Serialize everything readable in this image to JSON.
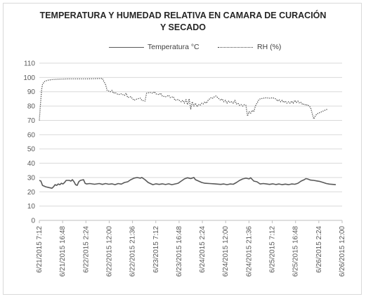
{
  "chart_data": {
    "type": "line",
    "title_lines": [
      "TEMPERATURA Y HUMEDAD RELATIVA EN CAMARA DE CURACIÓN",
      "Y SECADO"
    ],
    "xlabel": "",
    "ylabel": "",
    "ylim": [
      0,
      110
    ],
    "yticks": [
      0,
      10,
      20,
      30,
      40,
      50,
      60,
      70,
      80,
      90,
      100,
      110
    ],
    "grid": true,
    "legend_position": "top",
    "x_unit": "hours after 6/21/2015 7:12",
    "categories": [
      "6/21/2015 7:12",
      "6/21/2015 16:48",
      "6/22/2015 2:24",
      "6/22/2015 12:00",
      "6/22/2015 21:36",
      "6/23/2015 7:12",
      "6/23/2015 16:48",
      "6/24/2015 2:24",
      "6/24/2015 12:00",
      "6/24/2015 21:36",
      "6/25/2015 7:12",
      "6/25/2015 16:48",
      "6/26/2015 2:24",
      "6/26/2015 12:00"
    ],
    "series": [
      {
        "name": "Temperatura °C",
        "color": "#595959",
        "style": "solid",
        "points": [
          [
            0,
            28
          ],
          [
            1,
            27.5
          ],
          [
            2,
            24.5
          ],
          [
            4,
            23.5
          ],
          [
            6,
            23
          ],
          [
            8,
            22.5
          ],
          [
            9,
            23.5
          ],
          [
            10,
            25
          ],
          [
            11,
            24.5
          ],
          [
            12,
            25.5
          ],
          [
            13,
            25
          ],
          [
            14,
            26
          ],
          [
            15,
            25.5
          ],
          [
            16,
            26.5
          ],
          [
            17,
            28
          ],
          [
            19,
            28
          ],
          [
            20,
            27.5
          ],
          [
            21,
            28.5
          ],
          [
            22,
            27
          ],
          [
            23,
            25
          ],
          [
            24,
            24.5
          ],
          [
            25,
            27
          ],
          [
            26,
            28
          ],
          [
            28,
            28.5
          ],
          [
            29,
            26
          ],
          [
            30,
            25.5
          ],
          [
            32,
            25.8
          ],
          [
            35,
            25.3
          ],
          [
            38,
            25.8
          ],
          [
            40,
            25.2
          ],
          [
            42,
            25.8
          ],
          [
            44,
            25.3
          ],
          [
            46,
            25.6
          ],
          [
            48,
            25
          ],
          [
            50,
            25.8
          ],
          [
            52,
            25.4
          ],
          [
            54,
            26.5
          ],
          [
            56,
            27
          ],
          [
            58,
            28.5
          ],
          [
            60,
            29.5
          ],
          [
            62,
            30
          ],
          [
            64,
            29.5
          ],
          [
            65,
            30
          ],
          [
            67,
            28.5
          ],
          [
            69,
            26.5
          ],
          [
            71,
            25.5
          ],
          [
            72,
            25
          ],
          [
            74,
            25.6
          ],
          [
            76,
            25.2
          ],
          [
            78,
            25.6
          ],
          [
            80,
            25.1
          ],
          [
            82,
            25.6
          ],
          [
            84,
            25
          ],
          [
            86,
            25.5
          ],
          [
            88,
            26
          ],
          [
            90,
            27.5
          ],
          [
            92,
            29
          ],
          [
            94,
            29.8
          ],
          [
            96,
            29.2
          ],
          [
            98,
            30
          ],
          [
            99,
            28.5
          ],
          [
            101,
            27.5
          ],
          [
            103,
            26.5
          ],
          [
            105,
            26
          ],
          [
            108,
            25.8
          ],
          [
            111,
            25.6
          ],
          [
            113,
            25.4
          ],
          [
            115,
            25.2
          ],
          [
            117,
            25.5
          ],
          [
            119,
            25
          ],
          [
            121,
            25.5
          ],
          [
            123,
            25.3
          ],
          [
            125,
            26.5
          ],
          [
            127,
            28
          ],
          [
            129,
            29
          ],
          [
            131,
            29.5
          ],
          [
            133,
            29
          ],
          [
            134,
            29.8
          ],
          [
            136,
            27.5
          ],
          [
            138,
            27
          ],
          [
            140,
            25.5
          ],
          [
            142,
            25.8
          ],
          [
            144,
            25.5
          ],
          [
            146,
            25.2
          ],
          [
            148,
            25.6
          ],
          [
            150,
            25.1
          ],
          [
            152,
            25.5
          ],
          [
            154,
            25
          ],
          [
            156,
            25.4
          ],
          [
            158,
            25
          ],
          [
            160,
            25.5
          ],
          [
            162,
            25.3
          ],
          [
            164,
            26
          ],
          [
            166,
            27.5
          ],
          [
            168,
            28.5
          ],
          [
            169,
            29.2
          ],
          [
            170,
            29
          ],
          [
            172,
            28.2
          ],
          [
            174,
            28
          ],
          [
            176,
            27.6
          ],
          [
            178,
            27.2
          ],
          [
            180,
            26.5
          ],
          [
            182,
            25.8
          ],
          [
            184,
            25.4
          ],
          [
            186,
            25.2
          ],
          [
            188,
            25
          ]
        ]
      },
      {
        "name": "RH (%)",
        "color": "#404040",
        "style": "dotted",
        "points": [
          [
            0,
            70
          ],
          [
            0.5,
            78
          ],
          [
            1,
            85
          ],
          [
            1.5,
            92
          ],
          [
            2,
            95
          ],
          [
            3,
            97
          ],
          [
            5,
            98
          ],
          [
            8,
            98.5
          ],
          [
            12,
            98.8
          ],
          [
            18,
            99
          ],
          [
            24,
            99
          ],
          [
            30,
            99
          ],
          [
            36,
            99.2
          ],
          [
            40,
            99.3
          ],
          [
            41,
            97
          ],
          [
            42,
            95
          ],
          [
            43,
            91
          ],
          [
            45,
            90
          ],
          [
            46,
            91
          ],
          [
            47,
            89
          ],
          [
            48,
            89.5
          ],
          [
            50,
            88
          ],
          [
            52,
            88.5
          ],
          [
            54,
            87.5
          ],
          [
            55,
            89
          ],
          [
            56,
            86
          ],
          [
            58,
            86.5
          ],
          [
            60,
            84
          ],
          [
            62,
            85
          ],
          [
            64,
            85.5
          ],
          [
            65,
            84
          ],
          [
            67,
            83.5
          ],
          [
            68,
            89
          ],
          [
            70,
            89.5
          ],
          [
            72,
            89
          ],
          [
            73,
            90
          ],
          [
            74,
            88.5
          ],
          [
            76,
            88
          ],
          [
            77,
            89
          ],
          [
            78,
            87
          ],
          [
            80,
            86.5
          ],
          [
            82,
            87.5
          ],
          [
            83,
            86
          ],
          [
            85,
            86.5
          ],
          [
            86,
            84
          ],
          [
            88,
            84.5
          ],
          [
            90,
            83
          ],
          [
            91,
            84
          ],
          [
            92,
            82
          ],
          [
            93,
            84.5
          ],
          [
            94,
            81
          ],
          [
            95,
            85
          ],
          [
            96,
            78
          ],
          [
            97,
            83
          ],
          [
            98,
            80
          ],
          [
            99,
            82
          ],
          [
            100,
            79.5
          ],
          [
            101,
            81
          ],
          [
            102,
            80.5
          ],
          [
            103,
            82
          ],
          [
            104,
            81.5
          ],
          [
            105,
            83
          ],
          [
            106,
            82
          ],
          [
            107,
            84
          ],
          [
            108,
            85
          ],
          [
            109,
            86
          ],
          [
            110,
            85.5
          ],
          [
            111,
            86.5
          ],
          [
            112,
            87
          ],
          [
            113,
            86
          ],
          [
            114,
            85
          ],
          [
            115,
            84
          ],
          [
            116,
            85
          ],
          [
            117,
            83
          ],
          [
            118,
            84
          ],
          [
            119,
            82
          ],
          [
            120,
            83.5
          ],
          [
            121,
            82.5
          ],
          [
            122,
            83
          ],
          [
            123,
            82
          ],
          [
            124,
            84
          ],
          [
            125,
            81.5
          ],
          [
            126,
            82
          ],
          [
            127,
            80.5
          ],
          [
            128,
            81
          ],
          [
            129,
            80
          ],
          [
            130,
            81
          ],
          [
            131,
            80.5
          ],
          [
            132,
            73
          ],
          [
            133,
            76
          ],
          [
            134,
            75
          ],
          [
            135,
            77
          ],
          [
            136,
            76
          ],
          [
            137,
            80
          ],
          [
            138,
            82
          ],
          [
            139,
            84
          ],
          [
            140,
            85
          ],
          [
            142,
            85.5
          ],
          [
            144,
            85.8
          ],
          [
            146,
            85.5
          ],
          [
            148,
            85.8
          ],
          [
            150,
            85
          ],
          [
            151,
            83.5
          ],
          [
            152,
            84.5
          ],
          [
            153,
            83
          ],
          [
            154,
            84
          ],
          [
            155,
            82.5
          ],
          [
            156,
            83.5
          ],
          [
            157,
            82
          ],
          [
            158,
            83
          ],
          [
            159,
            82
          ],
          [
            160,
            83.5
          ],
          [
            161,
            82
          ],
          [
            162,
            84
          ],
          [
            163,
            82.5
          ],
          [
            164,
            83.5
          ],
          [
            165,
            82
          ],
          [
            166,
            82.5
          ],
          [
            167,
            81
          ],
          [
            168,
            81.5
          ],
          [
            169,
            80.5
          ],
          [
            170,
            81
          ],
          [
            171,
            80
          ],
          [
            172,
            79
          ],
          [
            173,
            75
          ],
          [
            174,
            71
          ],
          [
            175,
            73
          ],
          [
            176,
            74.5
          ],
          [
            177,
            75
          ],
          [
            178,
            75.5
          ],
          [
            179,
            76
          ],
          [
            180,
            76.5
          ],
          [
            181,
            77
          ],
          [
            182,
            77.5
          ],
          [
            183,
            78
          ]
        ]
      }
    ]
  }
}
